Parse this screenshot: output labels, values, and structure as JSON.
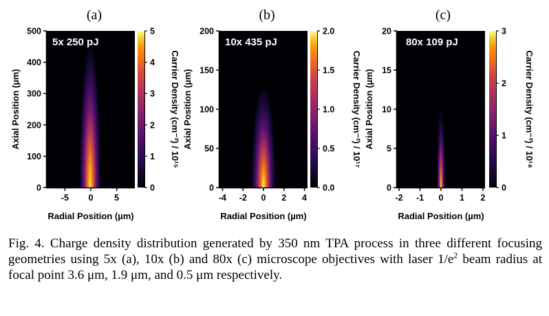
{
  "figure": {
    "panels": [
      {
        "letter": "(a)",
        "inset_label": "5x 250 pJ",
        "xlabel": "Radial Position (µm)",
        "ylabel": "Axial Position (µm)",
        "colorbar_label": "Carrier Density (cm⁻³) / 10¹⁵",
        "xlim": [
          -8.5,
          8.5
        ],
        "ylim": [
          0,
          500
        ],
        "xticks": [
          "-5",
          "0",
          "5"
        ],
        "yticks": [
          "0",
          "100",
          "200",
          "300",
          "400",
          "500"
        ],
        "cbar_ticks": [
          "0",
          "1",
          "2",
          "3",
          "4",
          "5"
        ],
        "cbar_range": [
          0,
          5
        ]
      },
      {
        "letter": "(b)",
        "inset_label": "10x 435 pJ",
        "xlabel": "Radial Position (µm)",
        "ylabel": "Axial Position (µm)",
        "colorbar_label": "Carrier Density (cm⁻³) / 10¹⁷",
        "xlim": [
          -4.3,
          4.3
        ],
        "ylim": [
          0,
          200
        ],
        "xticks": [
          "-4",
          "-2",
          "0",
          "2",
          "4"
        ],
        "yticks": [
          "0",
          "50",
          "100",
          "150",
          "200"
        ],
        "cbar_ticks": [
          "0.0",
          "0.5",
          "1.0",
          "1.5",
          "2.0"
        ],
        "cbar_range": [
          0,
          2
        ]
      },
      {
        "letter": "(c)",
        "inset_label": "80x 109 pJ",
        "xlabel": "Radial Position (µm)",
        "ylabel": "Axial Position (µm)",
        "colorbar_label": "Carrier Density (cm⁻³) / 10¹⁸",
        "xlim": [
          -2.1,
          2.1
        ],
        "ylim": [
          0,
          20
        ],
        "xticks": [
          "-2",
          "-1",
          "0",
          "1",
          "2"
        ],
        "yticks": [
          "0",
          "5",
          "10",
          "15",
          "20"
        ],
        "cbar_ticks": [
          "0",
          "1",
          "2",
          "3"
        ],
        "cbar_range": [
          0,
          3
        ]
      }
    ]
  },
  "caption": {
    "prefix": "Fig. 4.  Charge density distribution generated by 350 nm TPA process in three different focusing geometries using 5x (a), 10x (b) and 80x (c) microscope objectives with laser 1/e",
    "sup": "2",
    "suffix": " beam radius at focal point 3.6 μm, 1.9 μm, and 0.5 μm respectively."
  },
  "chart_data": [
    {
      "type": "heatmap",
      "title": "(a)",
      "annotation": "5x 250 pJ",
      "xlabel": "Radial Position (µm)",
      "ylabel": "Axial Position (µm)",
      "zlabel": "Carrier Density (cm⁻³) / 10¹⁵",
      "xlim": [
        -8.5,
        8.5
      ],
      "ylim": [
        0,
        500
      ],
      "zlim": [
        0,
        5
      ],
      "colormap": "inferno",
      "beam_radius_um": 3.6,
      "peak_density": 5,
      "profile_axial_um": [
        0,
        50,
        100,
        150,
        200,
        250,
        300,
        400
      ],
      "profile_peak_density": [
        5.0,
        4.2,
        2.8,
        1.8,
        1.2,
        0.8,
        0.5,
        0.2
      ]
    },
    {
      "type": "heatmap",
      "title": "(b)",
      "annotation": "10x 435 pJ",
      "xlabel": "Radial Position (µm)",
      "ylabel": "Axial Position (µm)",
      "zlabel": "Carrier Density (cm⁻³) / 10¹⁷",
      "xlim": [
        -4.3,
        4.3
      ],
      "ylim": [
        0,
        200
      ],
      "zlim": [
        0,
        2
      ],
      "colormap": "inferno",
      "beam_radius_um": 1.9,
      "peak_density": 2,
      "profile_axial_um": [
        0,
        25,
        50,
        75,
        100,
        125,
        150
      ],
      "profile_peak_density": [
        2.0,
        1.3,
        0.7,
        0.4,
        0.22,
        0.12,
        0.05
      ]
    },
    {
      "type": "heatmap",
      "title": "(c)",
      "annotation": "80x 109 pJ",
      "xlabel": "Radial Position (µm)",
      "ylabel": "Axial Position (µm)",
      "zlabel": "Carrier Density (cm⁻³) / 10¹⁸",
      "xlim": [
        -2.1,
        2.1
      ],
      "ylim": [
        0,
        20
      ],
      "zlim": [
        0,
        3
      ],
      "colormap": "inferno",
      "beam_radius_um": 0.5,
      "peak_density": 3,
      "profile_axial_um": [
        0,
        2,
        4,
        6,
        8,
        10
      ],
      "profile_peak_density": [
        3.0,
        1.6,
        0.7,
        0.3,
        0.12,
        0.05
      ]
    }
  ]
}
